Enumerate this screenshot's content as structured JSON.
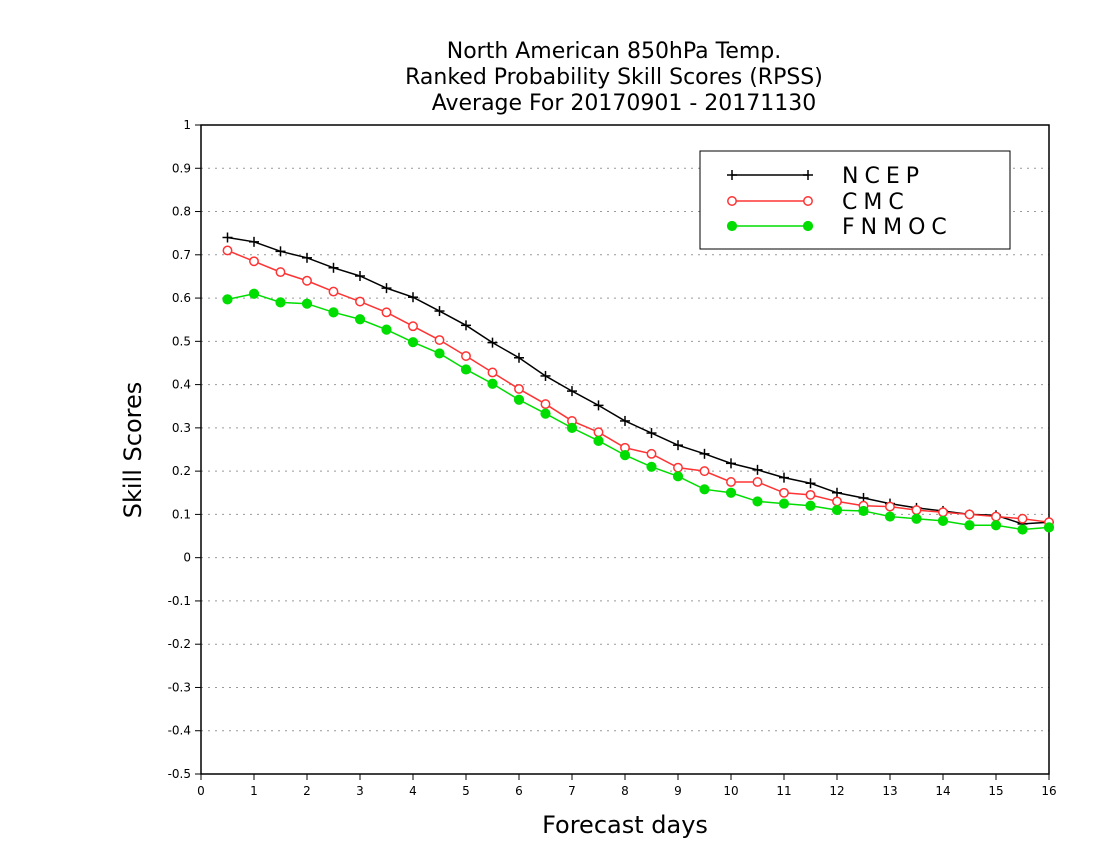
{
  "chart_data": {
    "type": "line",
    "title_lines": [
      "North American 850hPa Temp.",
      "Ranked Probability Skill Scores (RPSS)",
      "Average For 20170901 - 20171130"
    ],
    "xlabel": "Forecast days",
    "ylabel": "Skill Scores",
    "xlim": [
      0,
      16
    ],
    "ylim": [
      -0.5,
      1
    ],
    "x_ticks": [
      "0",
      "1",
      "2",
      "3",
      "4",
      "5",
      "6",
      "7",
      "8",
      "9",
      "10",
      "11",
      "12",
      "13",
      "14",
      "15",
      "16"
    ],
    "y_ticks": [
      "1",
      "0.9",
      "0.8",
      "0.7",
      "0.6",
      "0.5",
      "0.4",
      "0.3",
      "0.2",
      "0.1",
      "0",
      "-0.1",
      "-0.2",
      "-0.3",
      "-0.4",
      "-0.5"
    ],
    "grid": "horizontal dotted",
    "legend_position": "top-right",
    "x": [
      0.5,
      1,
      1.5,
      2,
      2.5,
      3,
      3.5,
      4,
      4.5,
      5,
      5.5,
      6,
      6.5,
      7,
      7.5,
      8,
      8.5,
      9,
      9.5,
      10,
      10.5,
      11,
      11.5,
      12,
      12.5,
      13,
      13.5,
      14,
      14.5,
      15,
      15.5,
      16
    ],
    "series": [
      {
        "name": "NCEP",
        "color": "#000000",
        "marker": "plus",
        "values": [
          0.74,
          0.73,
          0.708,
          0.693,
          0.67,
          0.651,
          0.623,
          0.602,
          0.57,
          0.537,
          0.497,
          0.462,
          0.42,
          0.385,
          0.352,
          0.316,
          0.288,
          0.26,
          0.24,
          0.218,
          0.203,
          0.185,
          0.172,
          0.15,
          0.138,
          0.125,
          0.115,
          0.108,
          0.1,
          0.098,
          0.078,
          0.082
        ]
      },
      {
        "name": "CMC",
        "color": "#ff3333",
        "marker": "open-circle",
        "values": [
          0.71,
          0.685,
          0.66,
          0.64,
          0.615,
          0.592,
          0.567,
          0.535,
          0.503,
          0.466,
          0.428,
          0.39,
          0.355,
          0.316,
          0.29,
          0.254,
          0.24,
          0.208,
          0.2,
          0.175,
          0.175,
          0.15,
          0.145,
          0.13,
          0.12,
          0.118,
          0.11,
          0.105,
          0.1,
          0.095,
          0.09,
          0.082
        ]
      },
      {
        "name": "FNMOC",
        "color": "#00dd00",
        "marker": "filled-circle",
        "values": [
          0.597,
          0.61,
          0.59,
          0.587,
          0.567,
          0.551,
          0.527,
          0.498,
          0.472,
          0.435,
          0.402,
          0.365,
          0.333,
          0.3,
          0.27,
          0.237,
          0.21,
          0.188,
          0.158,
          0.15,
          0.13,
          0.125,
          0.12,
          0.11,
          0.108,
          0.095,
          0.09,
          0.085,
          0.075,
          0.075,
          0.065,
          0.07
        ]
      }
    ]
  }
}
